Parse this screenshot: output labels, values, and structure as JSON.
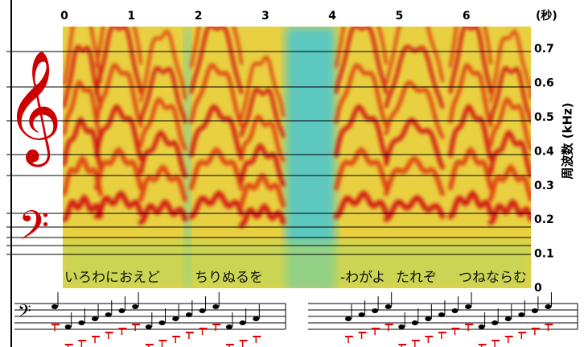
{
  "chart_data": {
    "type": "spectrogram",
    "x_label": "(秒)",
    "y_label": "周波数 (kHz)",
    "xlim": [
      0,
      7
    ],
    "xticks": [
      0,
      1,
      2,
      3,
      4,
      5,
      6
    ],
    "ylim": [
      0,
      0.75
    ],
    "yticks": [
      0,
      0.1,
      0.2,
      0.3,
      0.4,
      0.5,
      0.6,
      0.7
    ],
    "annotations": [
      "いろわにおえど",
      "ちりぬるを",
      "-わがよ",
      "たれぞ",
      "つねならむ"
    ]
  }
}
